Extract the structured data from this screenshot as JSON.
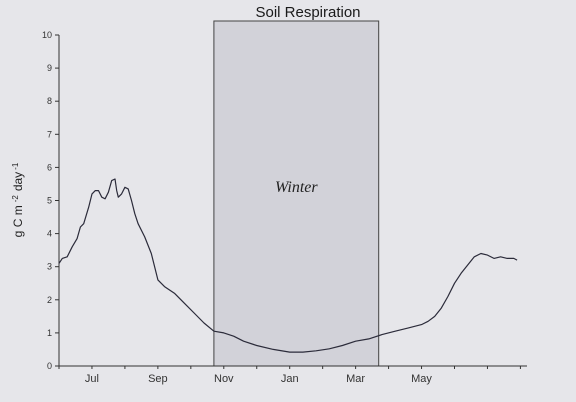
{
  "chart_data": {
    "type": "line",
    "title": "Soil Respiration",
    "ylabel_parts": {
      "main": "g C m",
      "sup1": "-2",
      "mid": "day",
      "sup2": "-1"
    },
    "ylim": [
      0,
      10
    ],
    "yticks": [
      0,
      1,
      2,
      3,
      4,
      5,
      6,
      7,
      8,
      9,
      10
    ],
    "xlim": [
      0,
      14.2
    ],
    "month_ticks": [
      {
        "label": "Jul",
        "pos": 1.0
      },
      {
        "label": "Sep",
        "pos": 3.0
      },
      {
        "label": "Nov",
        "pos": 5.0
      },
      {
        "label": "Jan",
        "pos": 7.0
      },
      {
        "label": "Mar",
        "pos": 9.0
      },
      {
        "label": "May",
        "pos": 11.0
      }
    ],
    "shaded_region": {
      "label": "Winter",
      "start": 4.7,
      "end": 9.7
    },
    "series": [
      {
        "x": [
          0.0,
          0.1,
          0.25,
          0.4,
          0.55,
          0.65,
          0.75,
          0.9,
          1.0,
          1.1,
          1.2,
          1.3,
          1.4,
          1.5,
          1.6,
          1.7,
          1.75,
          1.8,
          1.9,
          2.0,
          2.1,
          2.2,
          2.3,
          2.4,
          2.6,
          2.8,
          3.0,
          3.2,
          3.5,
          3.8,
          4.1,
          4.4,
          4.7,
          5.0,
          5.3,
          5.6,
          6.0,
          6.5,
          7.0,
          7.4,
          7.8,
          8.2,
          8.6,
          9.0,
          9.4,
          9.8,
          10.2,
          10.6,
          11.0,
          11.2,
          11.4,
          11.6,
          11.8,
          12.0,
          12.2,
          12.4,
          12.6,
          12.8,
          13.0,
          13.2,
          13.4,
          13.6,
          13.8,
          13.9
        ],
        "values": [
          3.1,
          3.25,
          3.3,
          3.6,
          3.85,
          4.2,
          4.3,
          4.8,
          5.2,
          5.3,
          5.3,
          5.1,
          5.05,
          5.25,
          5.6,
          5.65,
          5.3,
          5.1,
          5.2,
          5.4,
          5.35,
          5.0,
          4.6,
          4.3,
          3.9,
          3.4,
          2.6,
          2.4,
          2.2,
          1.9,
          1.6,
          1.3,
          1.05,
          1.0,
          0.9,
          0.75,
          0.62,
          0.5,
          0.42,
          0.42,
          0.46,
          0.52,
          0.62,
          0.75,
          0.82,
          0.95,
          1.05,
          1.15,
          1.25,
          1.35,
          1.5,
          1.75,
          2.1,
          2.5,
          2.8,
          3.05,
          3.3,
          3.4,
          3.35,
          3.25,
          3.3,
          3.25,
          3.25,
          3.2
        ]
      }
    ]
  }
}
